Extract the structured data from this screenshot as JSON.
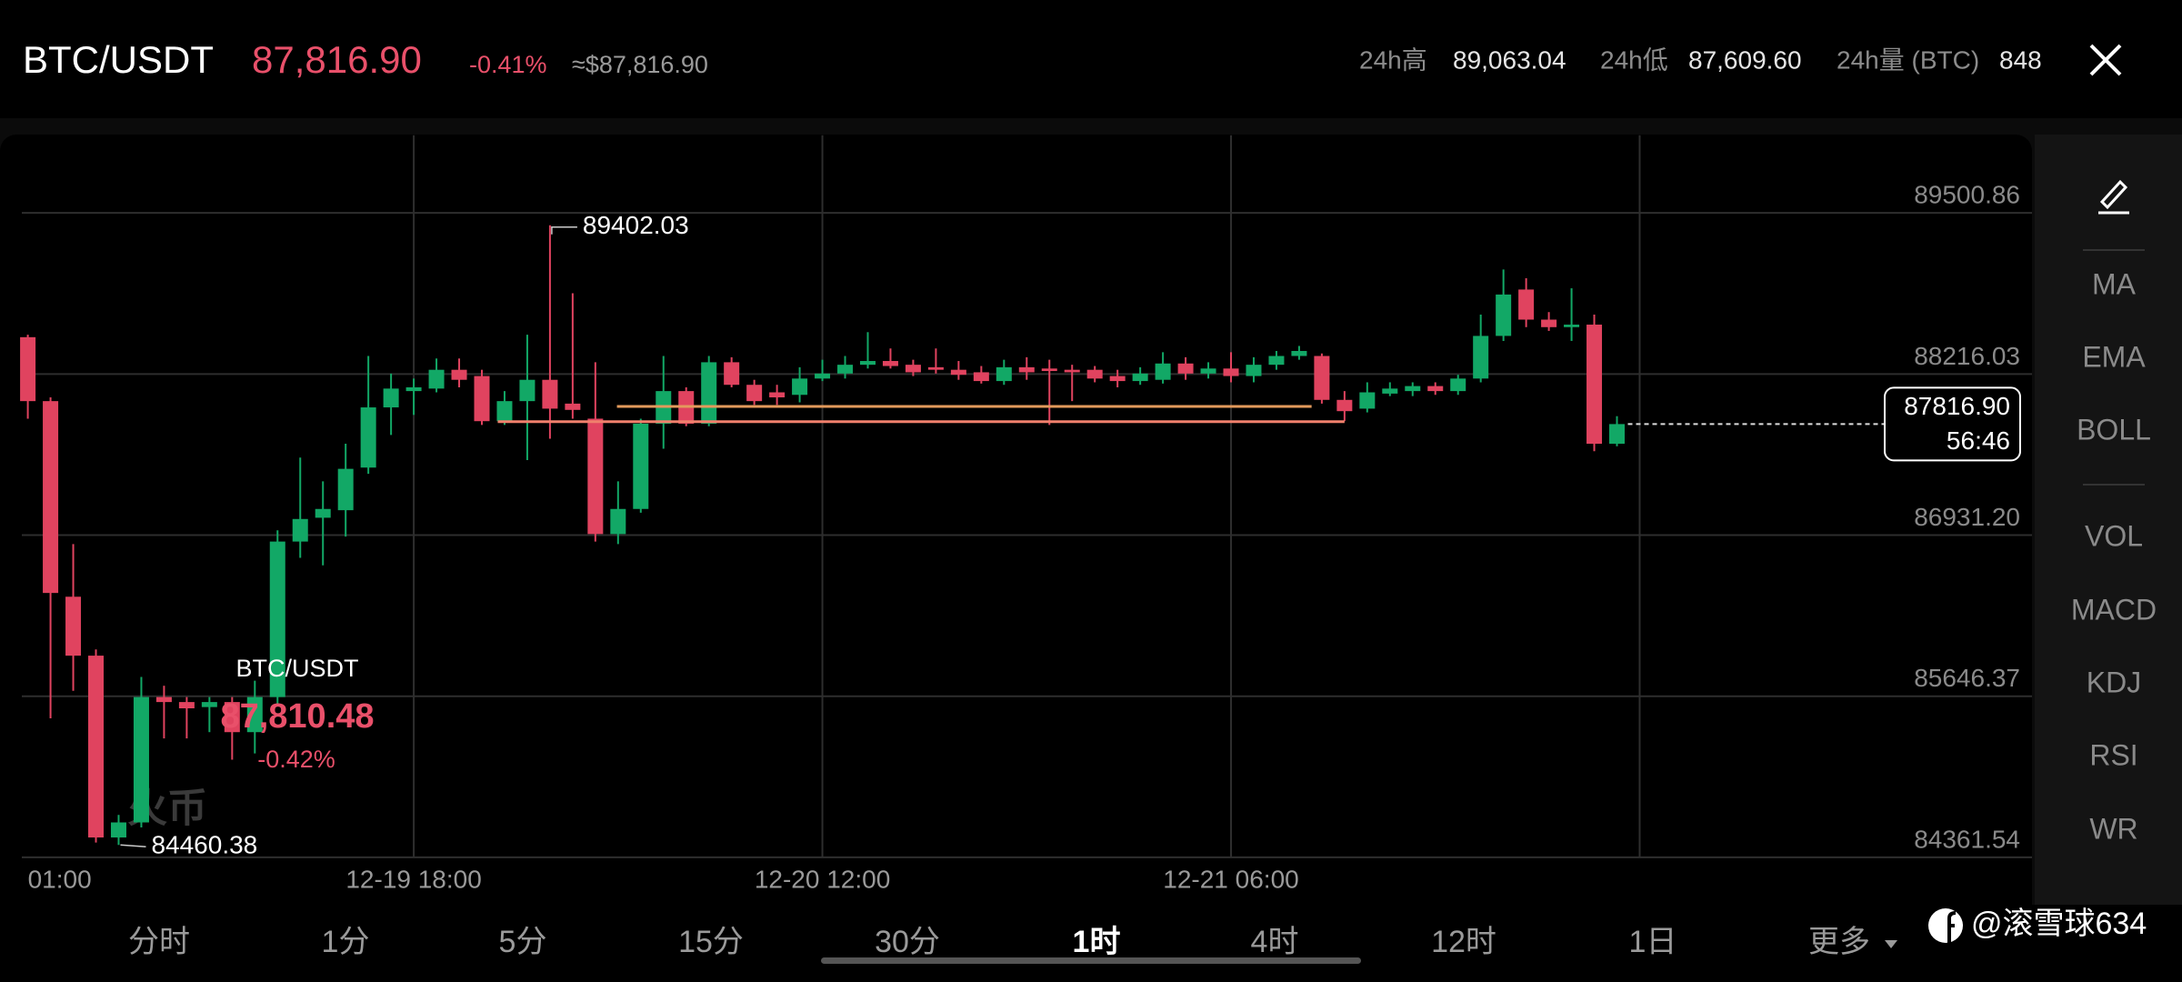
{
  "header": {
    "pair": "BTC/USDT",
    "price": "87,816.90",
    "change": "-0.41%",
    "fiat": "≈$87,816.90",
    "stats": [
      {
        "label": "24h高",
        "value": "89,063.04"
      },
      {
        "label": "24h低",
        "value": "87,609.60"
      },
      {
        "label": "24h量 (BTC)",
        "value": "848"
      }
    ]
  },
  "chart_data": {
    "type": "candlestick",
    "categories": [
      "01:00",
      null,
      null,
      null,
      null,
      null,
      null,
      null,
      null,
      null,
      null,
      null,
      null,
      null,
      null,
      null,
      null,
      "12-19 18:00",
      null,
      null,
      null,
      null,
      null,
      null,
      null,
      null,
      null,
      null,
      null,
      null,
      null,
      null,
      null,
      null,
      null,
      "12-20 12:00",
      null,
      null,
      null,
      null,
      null,
      null,
      null,
      null,
      null,
      null,
      null,
      null,
      null,
      null,
      null,
      null,
      null,
      "12-21 06:00",
      null,
      null,
      null,
      null,
      null,
      null,
      null,
      null,
      null,
      null,
      null,
      null,
      null,
      null,
      null,
      null,
      null
    ],
    "open": [
      88510,
      88000,
      86440,
      85970,
      84520,
      84640,
      85640,
      85600,
      85560,
      85600,
      85360,
      85640,
      86880,
      87070,
      87130,
      87470,
      87950,
      88080,
      88100,
      88250,
      88200,
      87840,
      88000,
      88170,
      87980,
      87860,
      86940,
      87140,
      87820,
      88080,
      87820,
      88310,
      88130,
      88070,
      88050,
      88180,
      88220,
      88290,
      88320,
      88290,
      88270,
      88250,
      88230,
      88160,
      88270,
      88260,
      88250,
      88250,
      88200,
      88160,
      88170,
      88300,
      88220,
      88260,
      88200,
      88290,
      88360,
      88360,
      88010,
      87940,
      88060,
      88080,
      88120,
      88080,
      88180,
      88520,
      88890,
      88650,
      88590,
      88610,
      87660
    ],
    "high": [
      88530,
      88030,
      86860,
      86020,
      84700,
      85800,
      85730,
      85640,
      85640,
      85640,
      85770,
      86970,
      87550,
      87360,
      87660,
      88360,
      88220,
      88180,
      88340,
      88340,
      88250,
      88080,
      88530,
      89402.03,
      88860,
      88310,
      87360,
      87860,
      88360,
      88110,
      88360,
      88350,
      88170,
      88130,
      88270,
      88330,
      88360,
      88550,
      88420,
      88330,
      88420,
      88320,
      88280,
      88330,
      88350,
      88330,
      88290,
      88280,
      88250,
      88270,
      88390,
      88350,
      88310,
      88390,
      88350,
      88400,
      88440,
      88380,
      88080,
      88150,
      88150,
      88150,
      88150,
      88210,
      88690,
      89050,
      88980,
      88710,
      88900,
      88690,
      87880
    ],
    "low": [
      87860,
      85470,
      85690,
      84480,
      84460.38,
      84600,
      85310,
      85310,
      85360,
      85140,
      85190,
      85580,
      86750,
      86690,
      86920,
      87420,
      87730,
      87890,
      88070,
      88110,
      87810,
      87810,
      87530,
      87700,
      87860,
      86880,
      86860,
      87110,
      87620,
      87800,
      87800,
      88110,
      87970,
      87970,
      87990,
      88160,
      88180,
      88260,
      88260,
      88200,
      88220,
      88170,
      88140,
      88130,
      88170,
      87810,
      88000,
      88150,
      88110,
      88130,
      88140,
      88170,
      88180,
      88150,
      88150,
      88250,
      88330,
      87980,
      87840,
      87910,
      88040,
      88040,
      88050,
      88050,
      88150,
      88480,
      88590,
      88560,
      88480,
      87600,
      87640
    ],
    "close": [
      88000,
      86470,
      85970,
      84520,
      84640,
      85640,
      85600,
      85550,
      85600,
      85360,
      85640,
      86880,
      87060,
      87140,
      87460,
      87950,
      88100,
      88110,
      88250,
      88170,
      87840,
      88000,
      88170,
      87940,
      87930,
      86940,
      87140,
      87820,
      88080,
      87820,
      88310,
      88130,
      88000,
      88030,
      88180,
      88220,
      88290,
      88320,
      88280,
      88230,
      88250,
      88210,
      88160,
      88270,
      88230,
      88240,
      88230,
      88180,
      88160,
      88220,
      88300,
      88220,
      88260,
      88200,
      88290,
      88360,
      88400,
      88010,
      87920,
      88070,
      88100,
      88120,
      88080,
      88180,
      88520,
      88850,
      88650,
      88590,
      88610,
      87660,
      87816.9
    ],
    "up_color": "#12a866",
    "down_color": "#e0435f",
    "ylim": [
      84361.54,
      90120
    ],
    "yticks": [
      89500.86,
      88216.03,
      {
        "value": 86931.2,
        "label": "86931.20"
      },
      85646.37,
      84361.54
    ],
    "grid": true,
    "drawn_lines": [
      {
        "value": 87958,
        "color": "#e39a5c"
      },
      {
        "value": 87836,
        "color": "#f0806c"
      }
    ],
    "price_tag": {
      "value": 87816.9,
      "label": "87816.90",
      "countdown": "56:46"
    },
    "tooltip": {
      "pair": "BTC/USDT",
      "price": "87,810.48",
      "change": "-0.42%"
    },
    "watermark": "火币"
  },
  "indicators": [
    "MA",
    "EMA",
    "BOLL",
    "VOL",
    "MACD",
    "KDJ",
    "RSI",
    "WR"
  ],
  "timeframes": [
    {
      "label": "分时",
      "selected": false
    },
    {
      "label": "1分",
      "selected": false
    },
    {
      "label": "5分",
      "selected": false
    },
    {
      "label": "15分",
      "selected": false
    },
    {
      "label": "30分",
      "selected": false
    },
    {
      "label": "1时",
      "selected": true
    },
    {
      "label": "4时",
      "selected": false
    },
    {
      "label": "12时",
      "selected": false
    },
    {
      "label": "1日",
      "selected": false
    }
  ],
  "more": "更多",
  "user_watermark": "@滚雪球634"
}
